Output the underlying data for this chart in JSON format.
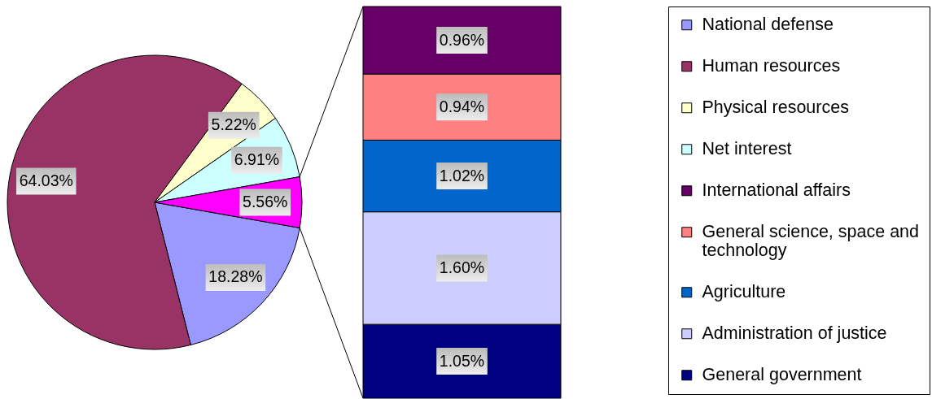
{
  "chart_data": [
    {
      "type": "pie",
      "categories": [
        "National defense",
        "Human resources",
        "Physical resources",
        "Net interest",
        null
      ],
      "values": [
        18.28,
        64.03,
        5.22,
        6.91,
        5.56
      ],
      "colors": [
        "#9999ff",
        "#993366",
        "#ffffcc",
        "#ccffff",
        "#ff00ff"
      ],
      "value_labels": [
        "18.28%",
        "64.03%",
        "5.22%",
        "6.91%",
        "5.56%"
      ],
      "legend": "right"
    },
    {
      "type": "bar",
      "stacked": true,
      "categories": [
        null
      ],
      "tick_labels": false,
      "legend": "right",
      "series": [
        {
          "name": "General government",
          "color": "#000080",
          "values": [
            1.05
          ],
          "value_labels": [
            "1.05%"
          ]
        },
        {
          "name": "Administration of justice",
          "color": "#ccccff",
          "values": [
            1.6
          ],
          "value_labels": [
            "1.60%"
          ]
        },
        {
          "name": "Agriculture",
          "color": "#0066cc",
          "values": [
            1.02
          ],
          "value_labels": [
            "1.02%"
          ]
        },
        {
          "name": "General science, space and technology",
          "color": "#ff8080",
          "values": [
            0.94
          ],
          "value_labels": [
            "0.94%"
          ]
        },
        {
          "name": "International affairs",
          "color": "#660066",
          "values": [
            0.96
          ],
          "value_labels": [
            "0.96%"
          ]
        }
      ]
    }
  ]
}
